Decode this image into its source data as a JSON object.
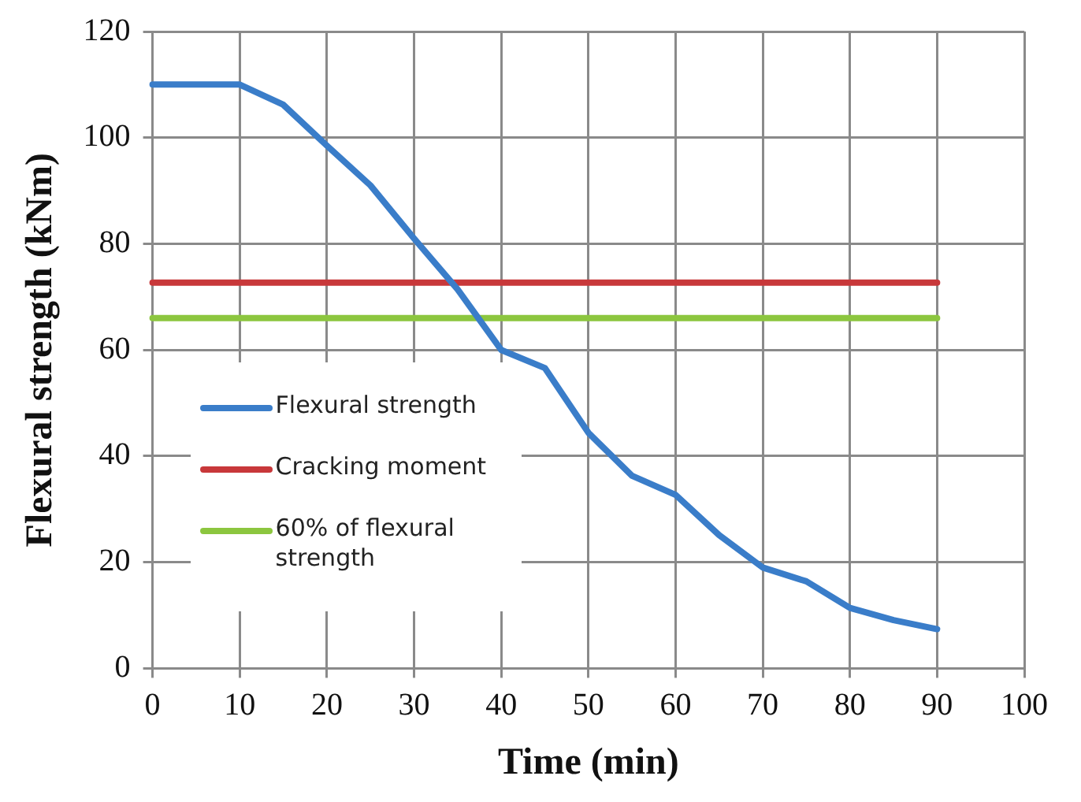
{
  "chart_data": {
    "type": "line",
    "xlabel": "Time (min)",
    "ylabel": "Flexural strength (kNm)",
    "x": [
      0,
      5,
      10,
      15,
      20,
      25,
      30,
      35,
      40,
      45,
      50,
      55,
      60,
      65,
      70,
      75,
      80,
      85,
      90
    ],
    "series": [
      {
        "name": "Flexural strength",
        "color": "#3a7dc9",
        "values": [
          110,
          110,
          110,
          106.2,
          98.5,
          91,
          81,
          71.4,
          60,
          56.6,
          44.4,
          36.3,
          32.7,
          25.1,
          19,
          16.4,
          11.4,
          9.1,
          7.4
        ]
      },
      {
        "name": "Cracking moment",
        "color": "#c8383a",
        "values": [
          72.7,
          72.7,
          72.7,
          72.7,
          72.7,
          72.7,
          72.7,
          72.7,
          72.7,
          72.7,
          72.7,
          72.7,
          72.7,
          72.7,
          72.7,
          72.7,
          72.7,
          72.7,
          72.7
        ]
      },
      {
        "name": "60% of flexural strength",
        "color": "#8cc63f",
        "values": [
          66,
          66,
          66,
          66,
          66,
          66,
          66,
          66,
          66,
          66,
          66,
          66,
          66,
          66,
          66,
          66,
          66,
          66,
          66
        ]
      }
    ],
    "xlim": [
      0,
      100
    ],
    "xticks": [
      0,
      10,
      20,
      30,
      40,
      50,
      60,
      70,
      80,
      90,
      100
    ],
    "ylim": [
      0,
      120
    ],
    "yticks": [
      0,
      20,
      40,
      60,
      80,
      100,
      120
    ],
    "grid": true,
    "legend": "left",
    "marker": "none",
    "line_style": "solid"
  }
}
